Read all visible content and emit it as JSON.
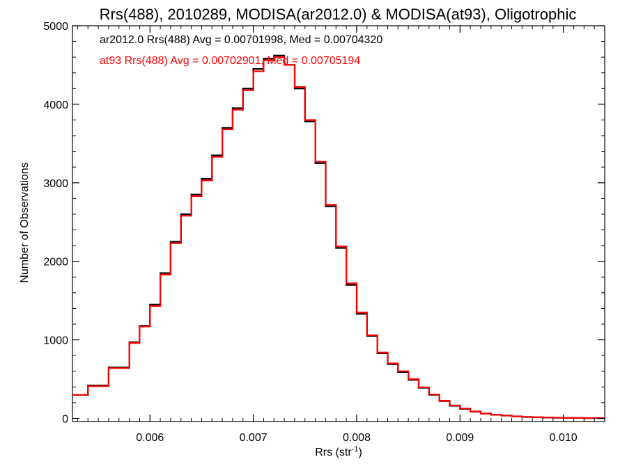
{
  "chart_data": {
    "type": "line",
    "title": "Rrs(488), 2010289, MODISA(ar2012.0) & MODISA(at93), Oligotrophic",
    "xlabel": "Rrs (str",
    "xlabel_superscript": "-1",
    "xlabel_suffix": ")",
    "ylabel": "Number of Observations",
    "xlim": [
      0.00525,
      0.0104
    ],
    "ylim": [
      -40,
      5000
    ],
    "xticks": [
      0.006,
      0.007,
      0.008,
      0.009,
      0.01
    ],
    "xtick_labels": [
      "0.006",
      "0.007",
      "0.008",
      "0.009",
      "0.010"
    ],
    "yticks": [
      0,
      1000,
      2000,
      3000,
      4000,
      5000
    ],
    "ytick_labels": [
      "0",
      "1000",
      "2000",
      "3000",
      "4000",
      "5000"
    ],
    "annotations": [
      {
        "text": "ar2012.0 Rrs(488) Avg = 0.00701998, Med = 0.00704320",
        "color": "#000000"
      },
      {
        "text": "at93 Rrs(488) Avg = 0.00702901, Med = 0.00705194",
        "color": "#ff0000"
      }
    ],
    "series": [
      {
        "name": "ar2012.0",
        "color": "#000000",
        "x": [
          0.00525,
          0.0054,
          0.0056,
          0.0058,
          0.0059,
          0.006,
          0.0061,
          0.0062,
          0.0063,
          0.0064,
          0.0065,
          0.0066,
          0.0067,
          0.0068,
          0.0069,
          0.007,
          0.0071,
          0.0072,
          0.0073,
          0.0074,
          0.0075,
          0.0076,
          0.0077,
          0.0078,
          0.0079,
          0.008,
          0.0081,
          0.0082,
          0.0083,
          0.0084,
          0.0085,
          0.0086,
          0.0087,
          0.0088,
          0.0089,
          0.009,
          0.0091,
          0.0092,
          0.0093,
          0.0094,
          0.0095,
          0.0096,
          0.0097,
          0.0098,
          0.0099,
          0.01,
          0.0102,
          0.0104
        ],
        "y": [
          300,
          420,
          650,
          970,
          1180,
          1450,
          1850,
          2250,
          2600,
          2850,
          3050,
          3350,
          3700,
          3950,
          4200,
          4450,
          4580,
          4620,
          4500,
          4200,
          3780,
          3250,
          2700,
          2170,
          1700,
          1330,
          1050,
          830,
          690,
          590,
          490,
          390,
          300,
          220,
          160,
          120,
          85,
          60,
          45,
          35,
          25,
          18,
          14,
          10,
          8,
          6,
          3,
          1
        ]
      },
      {
        "name": "at93",
        "color": "#ff0000",
        "x": [
          0.00525,
          0.0054,
          0.0056,
          0.0058,
          0.0059,
          0.006,
          0.0061,
          0.0062,
          0.0063,
          0.0064,
          0.0065,
          0.0066,
          0.0067,
          0.0068,
          0.0069,
          0.007,
          0.0071,
          0.0072,
          0.0073,
          0.0074,
          0.0075,
          0.0076,
          0.0077,
          0.0078,
          0.0079,
          0.008,
          0.0081,
          0.0082,
          0.0083,
          0.0084,
          0.0085,
          0.0086,
          0.0087,
          0.0088,
          0.0089,
          0.009,
          0.0091,
          0.0092,
          0.0093,
          0.0094,
          0.0095,
          0.0096,
          0.0097,
          0.0098,
          0.0099,
          0.01,
          0.0102,
          0.0104
        ],
        "y": [
          300,
          410,
          640,
          960,
          1170,
          1430,
          1830,
          2230,
          2580,
          2830,
          3030,
          3330,
          3680,
          3930,
          4180,
          4420,
          4560,
          4600,
          4500,
          4220,
          3800,
          3270,
          2720,
          2190,
          1720,
          1350,
          1060,
          840,
          700,
          600,
          500,
          395,
          305,
          225,
          165,
          125,
          88,
          62,
          46,
          36,
          26,
          19,
          15,
          11,
          9,
          7,
          4,
          2
        ]
      }
    ],
    "grid": false,
    "legend": "none"
  }
}
